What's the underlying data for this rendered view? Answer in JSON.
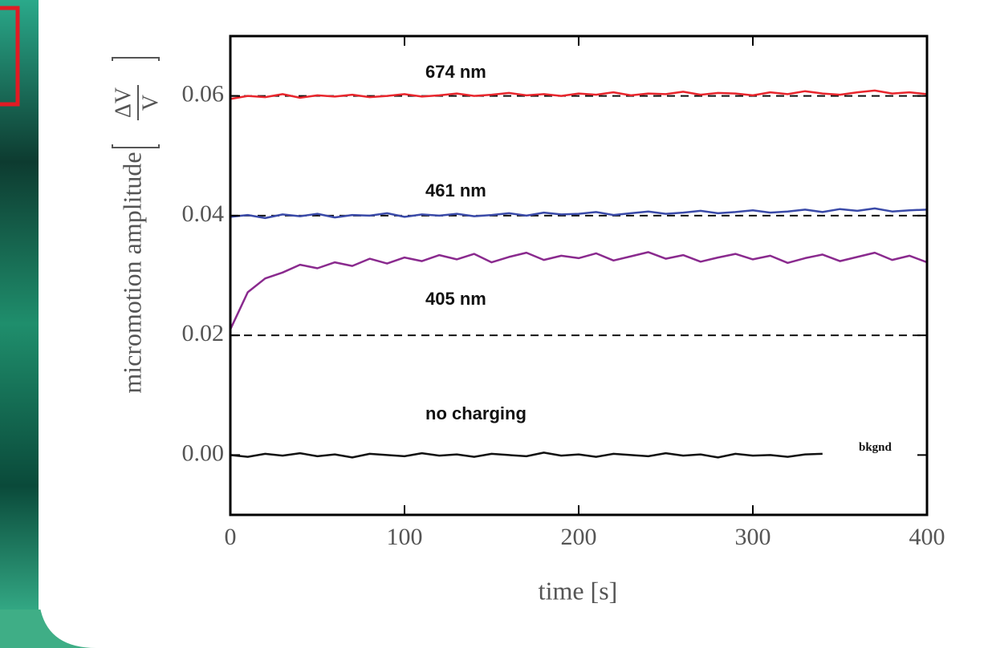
{
  "chart_data": {
    "type": "line",
    "xlabel": "time [s]",
    "ylabel": "micromotion amplitude",
    "ylabel_fraction": {
      "numerator": "ΔV",
      "denominator": "V"
    },
    "x": [
      0,
      10,
      20,
      30,
      40,
      50,
      60,
      70,
      80,
      90,
      100,
      110,
      120,
      130,
      140,
      150,
      160,
      170,
      180,
      190,
      200,
      210,
      220,
      230,
      240,
      250,
      260,
      270,
      280,
      290,
      300,
      310,
      320,
      330,
      340,
      350,
      360,
      370,
      380,
      390,
      400
    ],
    "series": [
      {
        "name": "674 nm",
        "color": "#e8262d",
        "values": [
          0.0595,
          0.06,
          0.0598,
          0.0603,
          0.0597,
          0.0601,
          0.0599,
          0.0602,
          0.0598,
          0.06,
          0.0603,
          0.0599,
          0.0601,
          0.0604,
          0.06,
          0.0602,
          0.0605,
          0.0601,
          0.0603,
          0.06,
          0.0604,
          0.0602,
          0.0606,
          0.0601,
          0.0604,
          0.0603,
          0.0607,
          0.0602,
          0.0605,
          0.0604,
          0.0601,
          0.0606,
          0.0603,
          0.0608,
          0.0604,
          0.0602,
          0.0606,
          0.0609,
          0.0604,
          0.0606,
          0.0603
        ]
      },
      {
        "name": "461 nm",
        "color": "#3a4aa8",
        "values": [
          0.0398,
          0.0401,
          0.0396,
          0.0402,
          0.0399,
          0.0403,
          0.0397,
          0.0401,
          0.04,
          0.0404,
          0.0398,
          0.0402,
          0.04,
          0.0403,
          0.0399,
          0.0401,
          0.0404,
          0.04,
          0.0405,
          0.0402,
          0.0403,
          0.0406,
          0.0401,
          0.0404,
          0.0407,
          0.0403,
          0.0405,
          0.0408,
          0.0404,
          0.0406,
          0.0409,
          0.0405,
          0.0407,
          0.041,
          0.0406,
          0.0411,
          0.0408,
          0.0412,
          0.0407,
          0.0409,
          0.041
        ]
      },
      {
        "name": "405 nm",
        "color": "#8a2a8e",
        "values": [
          0.021,
          0.0272,
          0.0295,
          0.0305,
          0.0318,
          0.0312,
          0.0322,
          0.0316,
          0.0328,
          0.032,
          0.033,
          0.0324,
          0.0334,
          0.0327,
          0.0336,
          0.0322,
          0.0331,
          0.0338,
          0.0326,
          0.0333,
          0.0329,
          0.0337,
          0.0325,
          0.0332,
          0.0339,
          0.0328,
          0.0334,
          0.0323,
          0.033,
          0.0336,
          0.0327,
          0.0333,
          0.0321,
          0.0329,
          0.0335,
          0.0324,
          0.0331,
          0.0338,
          0.0326,
          0.0333,
          0.0322
        ]
      },
      {
        "name": "no charging",
        "color": "#111111",
        "values": [
          0.0,
          -0.0003,
          0.0002,
          -0.0001,
          0.0003,
          -0.0002,
          0.0001,
          -0.0004,
          0.0002,
          0.0,
          -0.0002,
          0.0003,
          -0.0001,
          0.0001,
          -0.0003,
          0.0002,
          0.0,
          -0.0002,
          0.0004,
          -0.0001,
          0.0001,
          -0.0003,
          0.0002,
          0.0,
          -0.0002,
          0.0003,
          -0.0001,
          0.0001,
          -0.0004,
          0.0002,
          -0.0001,
          0.0,
          -0.0003,
          0.0001,
          0.0002,
          null,
          null,
          null,
          null,
          null,
          null
        ]
      }
    ],
    "reference_lines": [
      0.06,
      0.04,
      0.02
    ],
    "annotations": [
      "bkgnd"
    ],
    "xlim": [
      0,
      400
    ],
    "xticks": [
      0,
      100,
      200,
      300,
      400
    ],
    "ylim": [
      -0.01,
      0.07
    ],
    "yticks": [
      {
        "value": 0,
        "label": "0.00"
      },
      0.02,
      0.04,
      0.06
    ],
    "grid": false
  }
}
